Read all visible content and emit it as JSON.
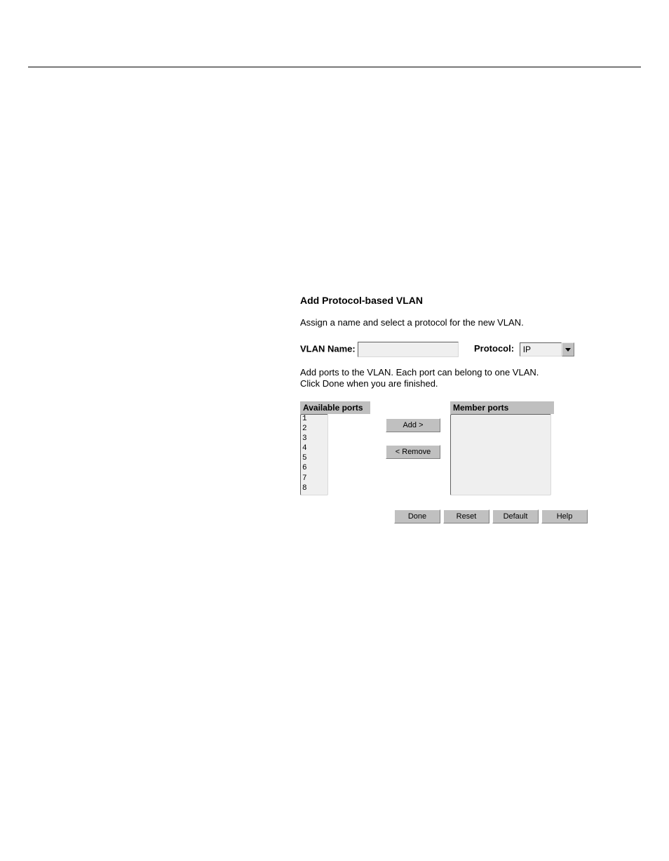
{
  "heading": "Add Protocol-based VLAN",
  "instruction1": "Assign a name and select a protocol for the new VLAN.",
  "labels": {
    "vlan_name": "VLAN Name:",
    "protocol": "Protocol:"
  },
  "vlan_name_value": "",
  "protocol_selected": "IP",
  "instruction2_line1": "Add ports to the VLAN. Each port can belong to one VLAN.",
  "instruction2_line2": "Click Done when you are finished.",
  "headers": {
    "available": "Available ports",
    "member": "Member ports"
  },
  "available_ports": [
    "1",
    "2",
    "3",
    "4",
    "5",
    "6",
    "7",
    "8"
  ],
  "member_ports": [],
  "buttons": {
    "add": "Add    >",
    "remove": "< Remove",
    "done": "Done",
    "reset": "Reset",
    "default": "Default",
    "help": "Help"
  },
  "colors": {
    "header_bg": "#bfbfbf",
    "input_bg": "#efefef",
    "button_bg": "#c0c0c0"
  }
}
